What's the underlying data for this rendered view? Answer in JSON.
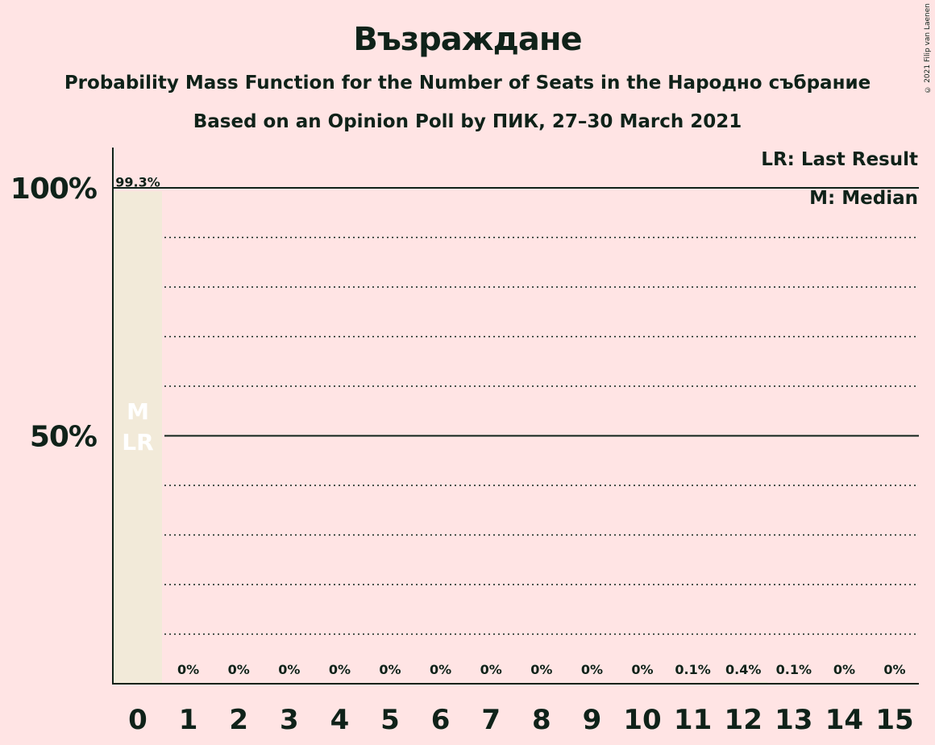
{
  "chart_data": {
    "type": "bar",
    "title": "Възраждане",
    "subtitle": "Probability Mass Function for the Number of Seats in the Народно събрание",
    "subtitle2": "Based on an Opinion Poll by ПИК, 27–30 March 2021",
    "copyright": "© 2021 Filip van Laenen",
    "categories": [
      "0",
      "1",
      "2",
      "3",
      "4",
      "5",
      "6",
      "7",
      "8",
      "9",
      "10",
      "11",
      "12",
      "13",
      "14",
      "15"
    ],
    "values": [
      99.3,
      0,
      0,
      0,
      0,
      0,
      0,
      0,
      0,
      0,
      0,
      0.1,
      0.4,
      0.1,
      0,
      0
    ],
    "value_labels": [
      "99.3%",
      "0%",
      "0%",
      "0%",
      "0%",
      "0%",
      "0%",
      "0%",
      "0%",
      "0%",
      "0%",
      "0.1%",
      "0.4%",
      "0.1%",
      "0%",
      "0%"
    ],
    "ylim": [
      0,
      100
    ],
    "yticks": [
      {
        "value": 50,
        "label": "50%"
      },
      {
        "value": 100,
        "label": "100%"
      }
    ],
    "minor_gridlines": [
      10,
      20,
      30,
      40,
      60,
      70,
      80,
      90
    ],
    "median_seat": 0,
    "last_result_seat": 0,
    "bar_markers": [
      "M",
      "LR"
    ],
    "legend": [
      "LR: Last Result",
      "M: Median"
    ],
    "colors": {
      "bar": "#f2ead9",
      "background": "#ffe4e4",
      "text": "#0f2219",
      "marker": "#ffffff"
    }
  }
}
